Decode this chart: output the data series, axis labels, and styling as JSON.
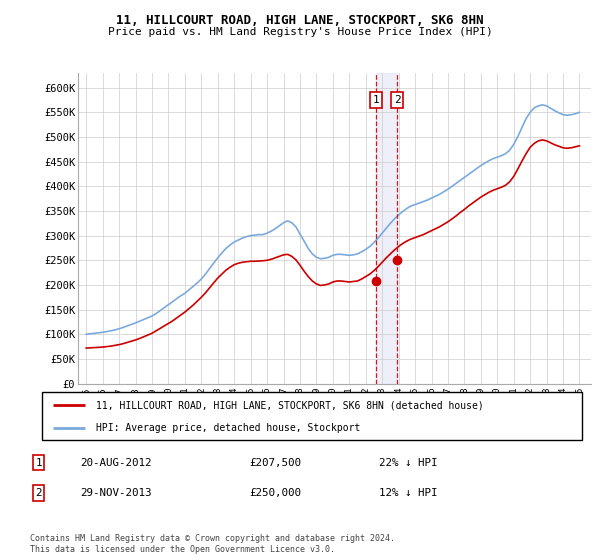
{
  "title": "11, HILLCOURT ROAD, HIGH LANE, STOCKPORT, SK6 8HN",
  "subtitle": "Price paid vs. HM Land Registry's House Price Index (HPI)",
  "hpi_color": "#7aaadd",
  "price_color": "#cc0000",
  "marker_color": "#cc0000",
  "vline_color": "#cc0000",
  "highlight_bg": "#d8d8f0",
  "legend_label_red": "11, HILLCOURT ROAD, HIGH LANE, STOCKPORT, SK6 8HN (detached house)",
  "legend_label_blue": "HPI: Average price, detached house, Stockport",
  "sale1_label": "1",
  "sale1_date": "20-AUG-2012",
  "sale1_price": "£207,500",
  "sale1_pct": "22% ↓ HPI",
  "sale1_year": 2012.63,
  "sale1_value": 207500,
  "sale2_label": "2",
  "sale2_date": "29-NOV-2013",
  "sale2_price": "£250,000",
  "sale2_pct": "12% ↓ HPI",
  "sale2_year": 2013.91,
  "sale2_value": 250000,
  "footer": "Contains HM Land Registry data © Crown copyright and database right 2024.\nThis data is licensed under the Open Government Licence v3.0.",
  "ylim": [
    0,
    630000
  ],
  "yticks": [
    0,
    50000,
    100000,
    150000,
    200000,
    250000,
    300000,
    350000,
    400000,
    450000,
    500000,
    550000,
    600000
  ],
  "ytick_labels": [
    "£0",
    "£50K",
    "£100K",
    "£150K",
    "£200K",
    "£250K",
    "£300K",
    "£350K",
    "£400K",
    "£450K",
    "£500K",
    "£550K",
    "£600K"
  ],
  "xlim": [
    1994.5,
    2025.7
  ],
  "xticks": [
    1995,
    1996,
    1997,
    1998,
    1999,
    2000,
    2001,
    2002,
    2003,
    2004,
    2005,
    2006,
    2007,
    2008,
    2009,
    2010,
    2011,
    2012,
    2013,
    2014,
    2015,
    2016,
    2017,
    2018,
    2019,
    2020,
    2021,
    2022,
    2023,
    2024,
    2025
  ],
  "hpi_x": [
    1995.0,
    1995.25,
    1995.5,
    1995.75,
    1996.0,
    1996.25,
    1996.5,
    1996.75,
    1997.0,
    1997.25,
    1997.5,
    1997.75,
    1998.0,
    1998.25,
    1998.5,
    1998.75,
    1999.0,
    1999.25,
    1999.5,
    1999.75,
    2000.0,
    2000.25,
    2000.5,
    2000.75,
    2001.0,
    2001.25,
    2001.5,
    2001.75,
    2002.0,
    2002.25,
    2002.5,
    2002.75,
    2003.0,
    2003.25,
    2003.5,
    2003.75,
    2004.0,
    2004.25,
    2004.5,
    2004.75,
    2005.0,
    2005.25,
    2005.5,
    2005.75,
    2006.0,
    2006.25,
    2006.5,
    2006.75,
    2007.0,
    2007.25,
    2007.5,
    2007.75,
    2008.0,
    2008.25,
    2008.5,
    2008.75,
    2009.0,
    2009.25,
    2009.5,
    2009.75,
    2010.0,
    2010.25,
    2010.5,
    2010.75,
    2011.0,
    2011.25,
    2011.5,
    2011.75,
    2012.0,
    2012.25,
    2012.5,
    2012.75,
    2013.0,
    2013.25,
    2013.5,
    2013.75,
    2014.0,
    2014.25,
    2014.5,
    2014.75,
    2015.0,
    2015.25,
    2015.5,
    2015.75,
    2016.0,
    2016.25,
    2016.5,
    2016.75,
    2017.0,
    2017.25,
    2017.5,
    2017.75,
    2018.0,
    2018.25,
    2018.5,
    2018.75,
    2019.0,
    2019.25,
    2019.5,
    2019.75,
    2020.0,
    2020.25,
    2020.5,
    2020.75,
    2021.0,
    2021.25,
    2021.5,
    2021.75,
    2022.0,
    2022.25,
    2022.5,
    2022.75,
    2023.0,
    2023.25,
    2023.5,
    2023.75,
    2024.0,
    2024.25,
    2024.5,
    2024.75,
    2025.0
  ],
  "hpi_y": [
    100000,
    101000,
    102000,
    103000,
    104000,
    105500,
    107000,
    109000,
    111000,
    114000,
    117000,
    120000,
    123000,
    126500,
    130000,
    133500,
    137000,
    142000,
    148000,
    154000,
    160000,
    166000,
    172000,
    178000,
    183000,
    190000,
    197000,
    204000,
    212000,
    222000,
    233000,
    244000,
    255000,
    265000,
    274000,
    281000,
    287000,
    291000,
    295000,
    298000,
    300000,
    301000,
    302000,
    302000,
    305000,
    309000,
    314000,
    320000,
    326000,
    330000,
    326000,
    318000,
    303000,
    289000,
    274000,
    263000,
    256000,
    253000,
    254000,
    256000,
    260000,
    262000,
    262000,
    261000,
    260000,
    261000,
    263000,
    267000,
    272000,
    278000,
    286000,
    295000,
    305000,
    315000,
    325000,
    334000,
    342000,
    349000,
    355000,
    360000,
    363000,
    366000,
    369000,
    372000,
    376000,
    380000,
    384000,
    389000,
    394000,
    400000,
    406000,
    412000,
    418000,
    424000,
    430000,
    436000,
    442000,
    447000,
    452000,
    456000,
    459000,
    462000,
    466000,
    473000,
    485000,
    501000,
    519000,
    537000,
    550000,
    559000,
    563000,
    565000,
    563000,
    558000,
    553000,
    549000,
    545000,
    544000,
    545000,
    547000,
    550000
  ],
  "price_x": [
    1995.0,
    1995.25,
    1995.5,
    1995.75,
    1996.0,
    1996.25,
    1996.5,
    1996.75,
    1997.0,
    1997.25,
    1997.5,
    1997.75,
    1998.0,
    1998.25,
    1998.5,
    1998.75,
    1999.0,
    1999.25,
    1999.5,
    1999.75,
    2000.0,
    2000.25,
    2000.5,
    2000.75,
    2001.0,
    2001.25,
    2001.5,
    2001.75,
    2002.0,
    2002.25,
    2002.5,
    2002.75,
    2003.0,
    2003.25,
    2003.5,
    2003.75,
    2004.0,
    2004.25,
    2004.5,
    2004.75,
    2005.0,
    2005.25,
    2005.5,
    2005.75,
    2006.0,
    2006.25,
    2006.5,
    2006.75,
    2007.0,
    2007.25,
    2007.5,
    2007.75,
    2008.0,
    2008.25,
    2008.5,
    2008.75,
    2009.0,
    2009.25,
    2009.5,
    2009.75,
    2010.0,
    2010.25,
    2010.5,
    2010.75,
    2011.0,
    2011.25,
    2011.5,
    2011.75,
    2012.0,
    2012.25,
    2012.5,
    2012.75,
    2013.0,
    2013.25,
    2013.5,
    2013.75,
    2014.0,
    2014.25,
    2014.5,
    2014.75,
    2015.0,
    2015.25,
    2015.5,
    2015.75,
    2016.0,
    2016.25,
    2016.5,
    2016.75,
    2017.0,
    2017.25,
    2017.5,
    2017.75,
    2018.0,
    2018.25,
    2018.5,
    2018.75,
    2019.0,
    2019.25,
    2019.5,
    2019.75,
    2020.0,
    2020.25,
    2020.5,
    2020.75,
    2021.0,
    2021.25,
    2021.5,
    2021.75,
    2022.0,
    2022.25,
    2022.5,
    2022.75,
    2023.0,
    2023.25,
    2023.5,
    2023.75,
    2024.0,
    2024.25,
    2024.5,
    2024.75,
    2025.0
  ],
  "price_y": [
    72000,
    72500,
    73000,
    73500,
    74000,
    75000,
    76000,
    77500,
    79000,
    81000,
    83500,
    86000,
    88500,
    91500,
    95000,
    98500,
    102000,
    107000,
    112000,
    117000,
    122000,
    127000,
    133000,
    139000,
    145000,
    152000,
    159000,
    167000,
    175000,
    184000,
    194000,
    204000,
    214000,
    222000,
    230000,
    236000,
    241000,
    244000,
    246000,
    247000,
    248000,
    248000,
    248500,
    249000,
    250000,
    252000,
    255000,
    258000,
    261000,
    262000,
    258000,
    251000,
    240000,
    228000,
    217000,
    208000,
    202000,
    199000,
    200000,
    202000,
    206000,
    208000,
    208000,
    207000,
    206000,
    207000,
    208000,
    212000,
    217000,
    222000,
    229000,
    237000,
    246000,
    255000,
    263000,
    271000,
    278000,
    284000,
    289000,
    293000,
    296000,
    299000,
    302000,
    306000,
    310000,
    314000,
    318000,
    323000,
    328000,
    334000,
    340000,
    347000,
    353000,
    360000,
    366000,
    372000,
    378000,
    383000,
    388000,
    392000,
    395000,
    398000,
    402000,
    409000,
    420000,
    435000,
    451000,
    466000,
    479000,
    487000,
    492000,
    494000,
    492000,
    488000,
    484000,
    481000,
    478000,
    477000,
    478000,
    480000,
    482000
  ]
}
